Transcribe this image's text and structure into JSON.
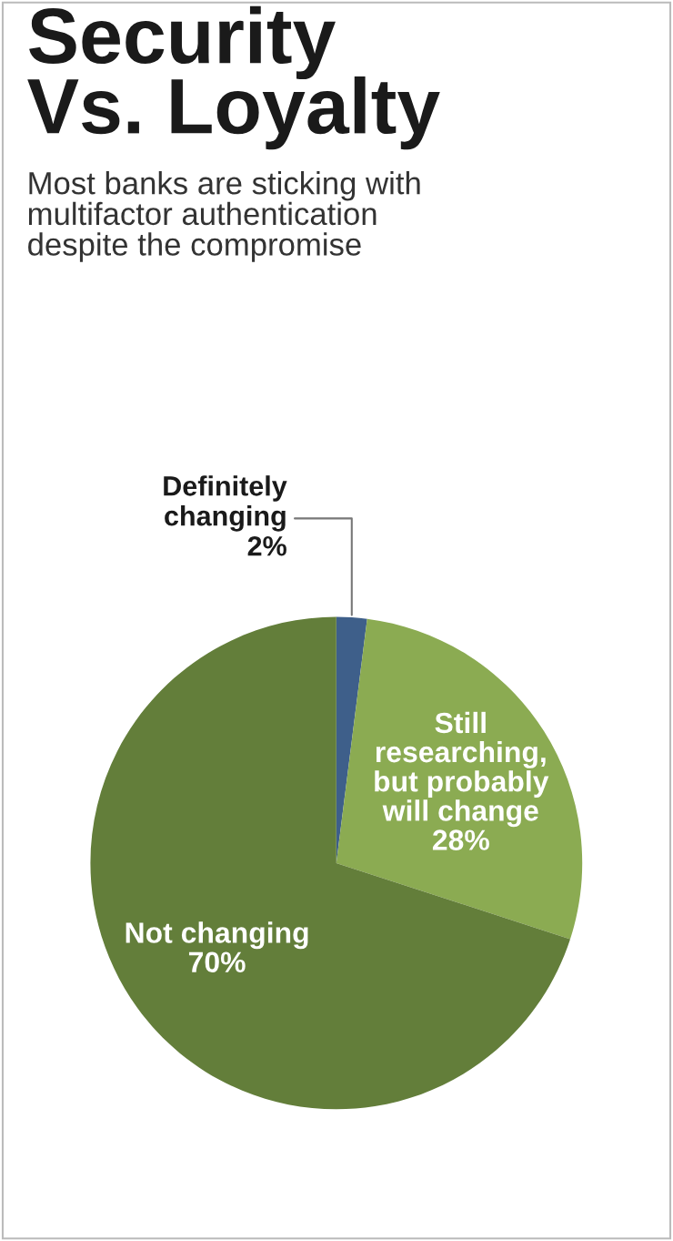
{
  "chart_data": {
    "type": "pie",
    "title": "Security\nVs. Loyalty",
    "subtitle": "Most banks are sticking with\nmultifactor authentication\ndespite the compromise",
    "categories": [
      "Definitely\nchanging",
      "Still\nresearching,\nbut probably\nwill change",
      "Not changing"
    ],
    "values": [
      2,
      28,
      70
    ],
    "value_labels": [
      "2%",
      "28%",
      "70%"
    ],
    "colors": [
      "#3e5f8a",
      "#8bab52",
      "#637e3a"
    ],
    "legend": false
  }
}
